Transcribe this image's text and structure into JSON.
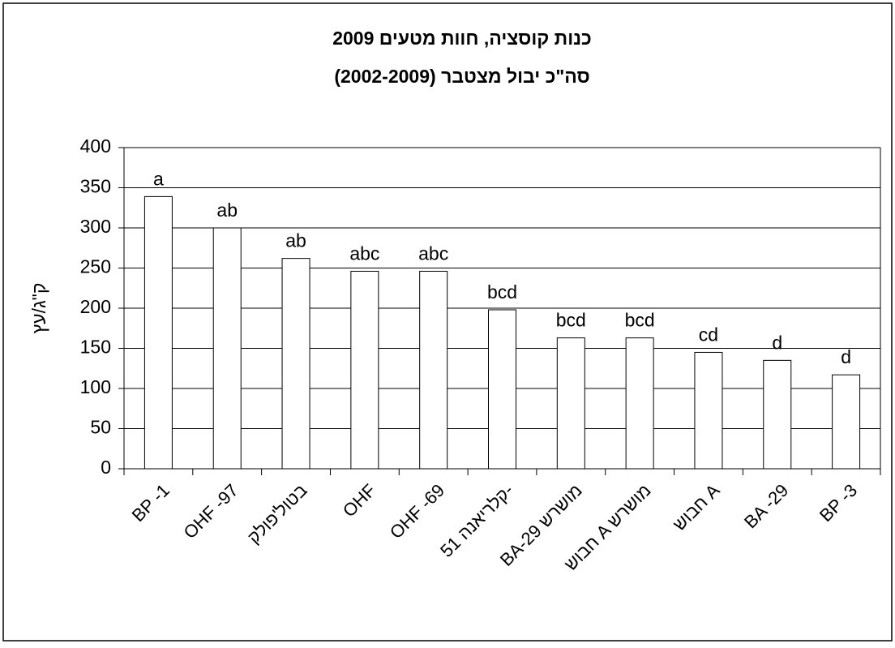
{
  "chart_data": {
    "type": "bar",
    "title": [
      "כנות קוסציה, חוות מטעים 2009",
      "סה\"כ יבול מצטבר (2002-2009)"
    ],
    "y_label": "ק\"ג/עץ",
    "categories": [
      "BP -1",
      "OHF -97",
      "בטול'פולק",
      "OHF",
      "OHF -69",
      "קלריאנה 51-",
      "BA-29 מושרש",
      "חבוש A מושרש",
      "חבוש A",
      "BA -29",
      "BP -3"
    ],
    "values": [
      339,
      300,
      262,
      246,
      246,
      198,
      163,
      163,
      145,
      135,
      117
    ],
    "annotations": [
      "a",
      "ab",
      "ab",
      "abc",
      "abc",
      "bcd",
      "bcd",
      "bcd",
      "cd",
      "d",
      "d"
    ],
    "color": "#ffffff",
    "ylim": [
      0,
      400
    ],
    "yticks": [
      0,
      50,
      100,
      150,
      200,
      250,
      300,
      350,
      400
    ],
    "grid": true
  }
}
